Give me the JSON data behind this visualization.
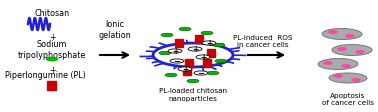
{
  "bg_color": "#ffffff",
  "text_chitosan": "Chitosan",
  "text_sodium": "Sodium\ntripolyphosphate",
  "text_pl": "Piperlongumine (PL)",
  "text_ionic": "Ionic\ngelation",
  "text_nanoparticles": "PL-loaded chitosan\nnanoparticles",
  "text_ros": "PL-induced  ROS\nin cancer cells",
  "text_apoptosis": "Apoptosis\nof cancer cells",
  "arrow_color": "#000000",
  "chitosan_wave_color": "#2222cc",
  "stp_dot_color": "#00bb00",
  "pl_square_color": "#cc0000",
  "nanoparticle_border_color": "#2222cc",
  "nanoparticle_fill_color": "#ffffff",
  "green_circle_color": "#00bb00",
  "red_square_color": "#cc0000",
  "white_circle_color": "#ffffff",
  "cancer_cell_color": "#aaaaaa",
  "cancer_dot_color": "#ff44aa",
  "font_size_label": 5.8,
  "font_size_small": 5.2,
  "fig_w": 3.78,
  "fig_h": 1.13,
  "dpi": 100
}
